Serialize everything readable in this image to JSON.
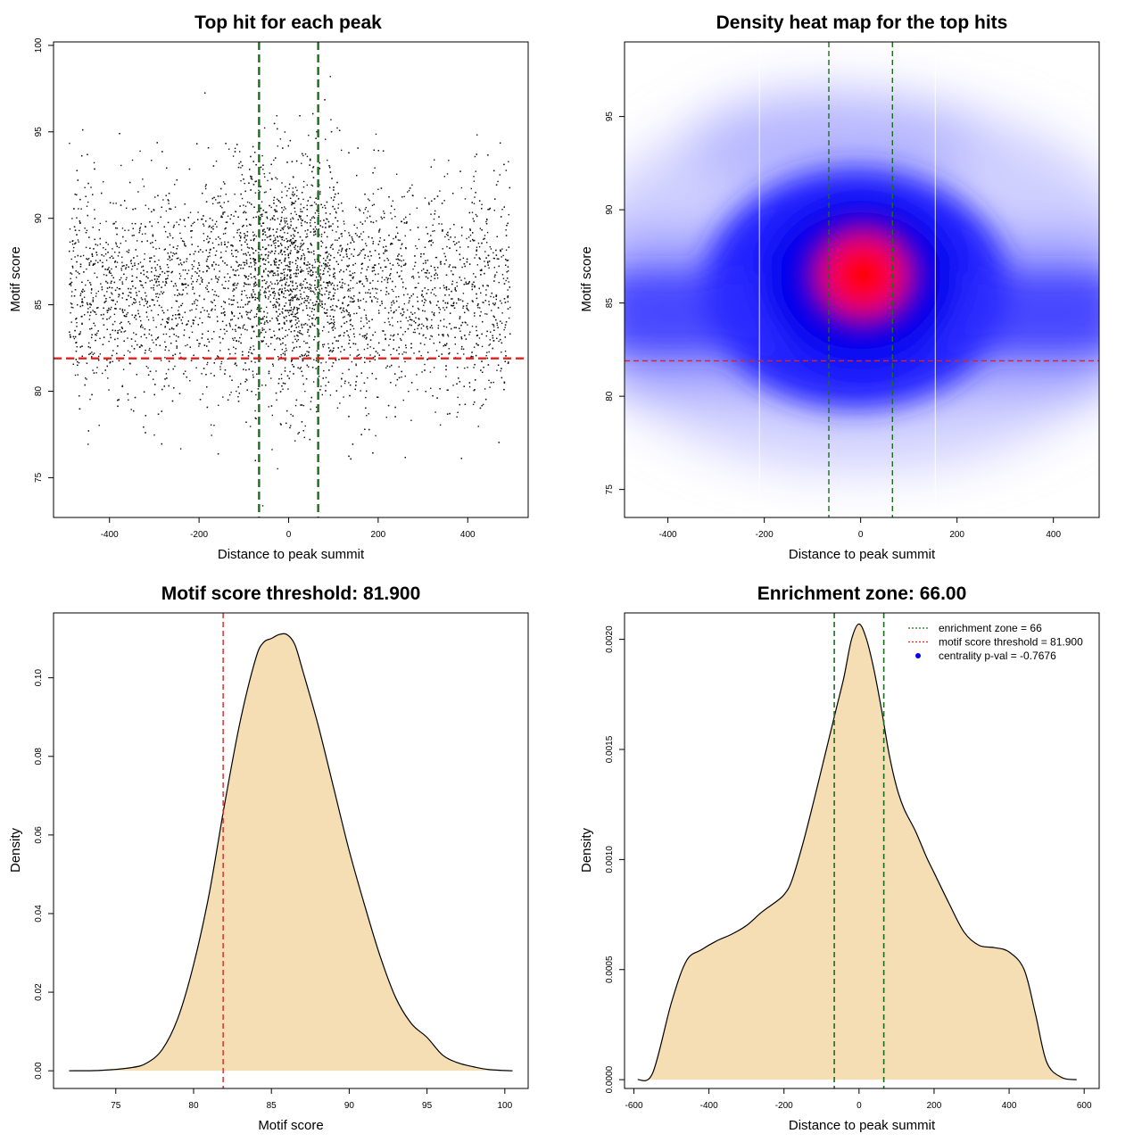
{
  "chart_data": [
    {
      "type": "scatter",
      "title": "Top hit for each peak",
      "xlabel": "Distance to peak summit",
      "ylabel": "Motif score",
      "xlim": [
        -525,
        535
      ],
      "ylim": [
        72.7,
        100.2
      ],
      "xticks": [
        -400,
        -200,
        0,
        200,
        400
      ],
      "yticks": [
        75,
        80,
        85,
        90,
        95,
        100
      ],
      "vlines": [
        -66,
        66
      ],
      "hline": 81.9,
      "point_count_estimate": 6000,
      "point_distribution": {
        "x_range": [
          -490,
          495
        ],
        "y_mean": 85.8,
        "y_sd": 3.3,
        "central_density_peak_x": 0
      },
      "grid": false
    },
    {
      "type": "heatmap",
      "title": "Density heat map for the top hits",
      "xlabel": "Distance to peak summit",
      "ylabel": "Motif score",
      "xlim": [
        -490,
        495
      ],
      "ylim": [
        73.5,
        99.0
      ],
      "xticks": [
        -400,
        -200,
        0,
        200,
        400
      ],
      "yticks": [
        75,
        80,
        85,
        90,
        95
      ],
      "vlines": [
        -66,
        66
      ],
      "hline": 81.9,
      "density_peak": {
        "x": 5,
        "y": 86.5
      },
      "colors": [
        "#ffffff",
        "#0000ff",
        "#ff0000"
      ],
      "grid": false
    },
    {
      "type": "area",
      "title": "Motif score threshold: 81.900",
      "xlabel": "Motif score",
      "ylabel": "Density",
      "xlim": [
        71,
        101.5
      ],
      "ylim": [
        -0.0045,
        0.1165
      ],
      "xticks": [
        75,
        80,
        85,
        90,
        95,
        100
      ],
      "yticks": [
        0.0,
        0.02,
        0.04,
        0.06,
        0.08,
        0.1
      ],
      "ytick_labels": [
        "0.00",
        "0.02",
        "0.04",
        "0.06",
        "0.08",
        "0.10"
      ],
      "vline": 81.9,
      "x": [
        72,
        74,
        76,
        77,
        78,
        79,
        80,
        81,
        82,
        83,
        84,
        84.5,
        85,
        85.5,
        86,
        86.5,
        87,
        88,
        89,
        90,
        91,
        92,
        93,
        94,
        95,
        96,
        97,
        98,
        99,
        100.5
      ],
      "y": [
        0.0,
        0.0001,
        0.0008,
        0.002,
        0.0055,
        0.0135,
        0.027,
        0.045,
        0.068,
        0.089,
        0.105,
        0.109,
        0.11,
        0.111,
        0.111,
        0.1085,
        0.102,
        0.088,
        0.072,
        0.056,
        0.042,
        0.029,
        0.0185,
        0.012,
        0.0085,
        0.004,
        0.002,
        0.001,
        0.0003,
        0.0
      ],
      "fill_color": "#f5deb3",
      "grid": false
    },
    {
      "type": "area",
      "title": "Enrichment zone: 66.00",
      "xlabel": "Distance to peak summit",
      "ylabel": "Density",
      "xlim": [
        -625,
        640
      ],
      "ylim": [
        -4e-05,
        0.00212
      ],
      "xticks": [
        -600,
        -400,
        -200,
        0,
        200,
        400,
        600
      ],
      "yticks": [
        0.0,
        0.0005,
        0.001,
        0.0015,
        0.002
      ],
      "ytick_labels": [
        "0.0000",
        "0.0005",
        "0.0010",
        "0.0015",
        "0.0020"
      ],
      "vlines": [
        -66,
        66
      ],
      "x": [
        -590,
        -550,
        -500,
        -460,
        -420,
        -380,
        -340,
        -300,
        -260,
        -220,
        -200,
        -180,
        -150,
        -120,
        -90,
        -60,
        -40,
        -20,
        0,
        20,
        40,
        60,
        80,
        100,
        120,
        150,
        180,
        200,
        240,
        280,
        320,
        360,
        400,
        440,
        470,
        500,
        540,
        580
      ],
      "y": [
        0.0,
        3e-05,
        0.00035,
        0.00054,
        0.00059,
        0.00063,
        0.00066,
        0.0007,
        0.00076,
        0.00081,
        0.00084,
        0.0009,
        0.00107,
        0.00127,
        0.00148,
        0.00169,
        0.00183,
        0.002,
        0.00207,
        0.002,
        0.00186,
        0.00168,
        0.00148,
        0.00133,
        0.00123,
        0.00113,
        0.00101,
        0.00094,
        0.0008,
        0.00067,
        0.00061,
        0.0006,
        0.00058,
        0.0005,
        0.0003,
        8e-05,
        1e-05,
        0.0
      ],
      "fill_color": "#f5deb3",
      "legend": {
        "position": "top-right",
        "entries": [
          {
            "label": "enrichment zone = 66",
            "color": "#1a7a1a",
            "style": "dotted-line"
          },
          {
            "label": "motif score threshold = 81.900",
            "color": "#dd2222",
            "style": "dotted-line"
          },
          {
            "label": "centrality p-val = -0.7676",
            "color": "#0000ff",
            "style": "point"
          }
        ]
      },
      "grid": false
    }
  ]
}
